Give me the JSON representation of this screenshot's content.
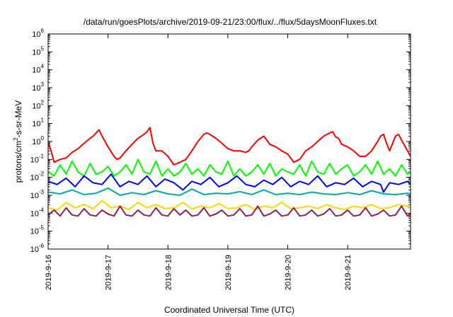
{
  "chart_data": {
    "type": "line",
    "title": "/data/run/goesPlots/archive/2019-09-21/23:00/flux/../flux/5daysMoonFluxes.txt",
    "xlabel": "Coordinated Universal Time (UTC)",
    "ylabel": "protons/cm2-s-sr-MeV",
    "ylabel_parts": {
      "pre": "protons/cm",
      "sup": "2",
      "post": "-s-sr-MeV"
    },
    "y_scale": "log",
    "ylim_exp": [
      -6,
      6
    ],
    "y_tick_base": "10",
    "y_ticks_exp": [
      -6,
      -5,
      -4,
      -3,
      -2,
      -1,
      0,
      1,
      2,
      3,
      4,
      5,
      6
    ],
    "x_ticks": [
      "2019-9-16",
      "2019-9-17",
      "2019-9-18",
      "2019-9-19",
      "2019-9-20",
      "2019-9-21"
    ],
    "x_range_days": [
      0,
      6.05
    ],
    "grid": false,
    "legend": "none",
    "series": [
      {
        "color": "#ff0000",
        "x": [
          0.0,
          0.05,
          0.1,
          0.2,
          0.3,
          0.4,
          0.5,
          0.6,
          0.7,
          0.75,
          0.8,
          0.85,
          0.9,
          1.0,
          1.1,
          1.15,
          1.2,
          1.3,
          1.4,
          1.5,
          1.6,
          1.65,
          1.7,
          1.75,
          1.8,
          1.85,
          1.9,
          2.0,
          2.1,
          2.2,
          2.3,
          2.4,
          2.5,
          2.6,
          2.65,
          2.7,
          2.8,
          2.9,
          3.0,
          3.1,
          3.2,
          3.3,
          3.35,
          3.4,
          3.5,
          3.6,
          3.7,
          3.8,
          3.9,
          4.0,
          4.1,
          4.2,
          4.3,
          4.4,
          4.5,
          4.6,
          4.7,
          4.75,
          4.8,
          4.85,
          4.9,
          5.0,
          5.1,
          5.2,
          5.3,
          5.4,
          5.5,
          5.55,
          5.6,
          5.65,
          5.7,
          5.8,
          5.85,
          5.9,
          6.0,
          6.05
        ],
        "y": [
          0.9,
          0.3,
          0.07,
          0.1,
          0.12,
          0.25,
          0.4,
          0.8,
          1.5,
          2.0,
          3.0,
          4.5,
          2.0,
          0.5,
          0.15,
          0.1,
          0.12,
          0.3,
          0.7,
          1.5,
          2.5,
          3.5,
          6.0,
          0.8,
          0.3,
          0.3,
          0.3,
          0.15,
          0.05,
          0.07,
          0.1,
          0.3,
          1.0,
          2.5,
          3.0,
          2.5,
          1.5,
          0.8,
          0.4,
          0.3,
          0.3,
          0.25,
          0.3,
          0.5,
          1.2,
          2.0,
          0.7,
          0.5,
          0.3,
          0.2,
          0.07,
          0.1,
          0.3,
          0.5,
          1.0,
          2.0,
          3.0,
          3.5,
          1.8,
          1.5,
          0.7,
          0.5,
          0.3,
          0.15,
          0.15,
          0.3,
          1.0,
          2.0,
          2.5,
          0.8,
          0.3,
          2.0,
          2.5,
          1.2,
          0.3,
          0.15
        ]
      },
      {
        "color": "#00ff00",
        "x": [
          0.0,
          0.1,
          0.2,
          0.3,
          0.4,
          0.5,
          0.6,
          0.7,
          0.8,
          0.9,
          1.0,
          1.1,
          1.2,
          1.3,
          1.4,
          1.5,
          1.6,
          1.7,
          1.8,
          1.9,
          2.0,
          2.1,
          2.2,
          2.3,
          2.4,
          2.5,
          2.6,
          2.7,
          2.8,
          2.9,
          3.0,
          3.1,
          3.2,
          3.3,
          3.4,
          3.5,
          3.6,
          3.7,
          3.8,
          3.9,
          4.0,
          4.1,
          4.2,
          4.3,
          4.4,
          4.5,
          4.6,
          4.7,
          4.8,
          4.9,
          5.0,
          5.1,
          5.2,
          5.3,
          5.4,
          5.5,
          5.6,
          5.7,
          5.8,
          5.9,
          6.0,
          6.05
        ],
        "y": [
          0.02,
          0.012,
          0.05,
          0.015,
          0.08,
          0.02,
          0.012,
          0.06,
          0.015,
          0.02,
          0.04,
          0.012,
          0.02,
          0.05,
          0.015,
          0.1,
          0.02,
          0.015,
          0.08,
          0.012,
          0.03,
          0.012,
          0.02,
          0.06,
          0.015,
          0.03,
          0.012,
          0.05,
          0.02,
          0.015,
          0.08,
          0.012,
          0.03,
          0.012,
          0.02,
          0.05,
          0.015,
          0.06,
          0.012,
          0.03,
          0.02,
          0.015,
          0.05,
          0.012,
          0.08,
          0.02,
          0.015,
          0.06,
          0.015,
          0.03,
          0.05,
          0.012,
          0.02,
          0.05,
          0.015,
          0.08,
          0.015,
          0.03,
          0.012,
          0.05,
          0.015,
          0.02
        ]
      },
      {
        "color": "#0000ff",
        "x": [
          0.0,
          0.15,
          0.3,
          0.45,
          0.6,
          0.75,
          0.9,
          1.05,
          1.2,
          1.35,
          1.5,
          1.65,
          1.8,
          1.95,
          2.1,
          2.25,
          2.4,
          2.55,
          2.7,
          2.85,
          3.0,
          3.15,
          3.3,
          3.45,
          3.6,
          3.75,
          3.9,
          4.05,
          4.2,
          4.35,
          4.5,
          4.65,
          4.8,
          4.95,
          5.1,
          5.25,
          5.4,
          5.55,
          5.6,
          5.7,
          5.85,
          6.0,
          6.05
        ],
        "y": [
          0.006,
          0.004,
          0.009,
          0.003,
          0.012,
          0.005,
          0.004,
          0.015,
          0.003,
          0.006,
          0.004,
          0.012,
          0.003,
          0.008,
          0.005,
          0.002,
          0.006,
          0.004,
          0.01,
          0.003,
          0.005,
          0.012,
          0.004,
          0.003,
          0.007,
          0.004,
          0.01,
          0.003,
          0.006,
          0.004,
          0.012,
          0.003,
          0.005,
          0.004,
          0.009,
          0.003,
          0.006,
          0.004,
          0.0015,
          0.005,
          0.004,
          0.006,
          0.004
        ]
      },
      {
        "color": "#00aaaa",
        "x": [
          0.0,
          0.2,
          0.4,
          0.6,
          0.8,
          1.0,
          1.2,
          1.4,
          1.6,
          1.8,
          2.0,
          2.2,
          2.4,
          2.6,
          2.8,
          3.0,
          3.2,
          3.4,
          3.6,
          3.8,
          4.0,
          4.2,
          4.4,
          4.6,
          4.8,
          5.0,
          5.2,
          5.4,
          5.6,
          5.8,
          6.0,
          6.05
        ],
        "y": [
          0.0015,
          0.0012,
          0.002,
          0.0011,
          0.0013,
          0.0025,
          0.001,
          0.0014,
          0.0011,
          0.0018,
          0.0012,
          0.001,
          0.0022,
          0.0011,
          0.0013,
          0.0012,
          0.0016,
          0.0011,
          0.002,
          0.0011,
          0.0013,
          0.0011,
          0.0015,
          0.0012,
          0.0011,
          0.0014,
          0.0011,
          0.0018,
          0.0012,
          0.0011,
          0.0013,
          0.0012
        ]
      },
      {
        "color": "#ffd700",
        "x": [
          0.0,
          0.15,
          0.3,
          0.45,
          0.6,
          0.75,
          0.9,
          1.05,
          1.2,
          1.35,
          1.5,
          1.65,
          1.8,
          1.95,
          2.1,
          2.25,
          2.4,
          2.55,
          2.7,
          2.85,
          3.0,
          3.15,
          3.3,
          3.45,
          3.6,
          3.75,
          3.9,
          4.05,
          4.2,
          4.35,
          4.5,
          4.65,
          4.8,
          4.95,
          5.1,
          5.25,
          5.4,
          5.55,
          5.7,
          5.85,
          6.0,
          6.05
        ],
        "y": [
          0.0002,
          0.00015,
          0.0004,
          0.0002,
          0.0003,
          0.00018,
          0.0005,
          0.0002,
          0.00025,
          0.00016,
          0.0004,
          0.0002,
          0.0003,
          0.00018,
          0.0002,
          0.0004,
          0.00017,
          0.00025,
          0.0002,
          0.00035,
          0.00018,
          0.0002,
          0.0003,
          0.00016,
          0.00025,
          0.0002,
          0.0004,
          0.00018,
          0.0002,
          0.00025,
          0.00018,
          0.0003,
          0.0002,
          0.00016,
          0.00025,
          0.0002,
          0.0003,
          0.00018,
          0.0002,
          0.0003,
          0.00025,
          0.0002
        ]
      },
      {
        "color": "#8b2252",
        "x": [
          0.0,
          0.1,
          0.2,
          0.3,
          0.4,
          0.5,
          0.6,
          0.7,
          0.8,
          0.9,
          1.0,
          1.1,
          1.2,
          1.3,
          1.4,
          1.5,
          1.6,
          1.7,
          1.8,
          1.9,
          2.0,
          2.1,
          2.2,
          2.3,
          2.4,
          2.5,
          2.6,
          2.7,
          2.8,
          2.9,
          3.0,
          3.1,
          3.2,
          3.3,
          3.4,
          3.5,
          3.6,
          3.7,
          3.8,
          3.9,
          4.0,
          4.1,
          4.2,
          4.3,
          4.4,
          4.5,
          4.6,
          4.7,
          4.8,
          4.9,
          5.0,
          5.1,
          5.2,
          5.3,
          5.4,
          5.5,
          5.6,
          5.7,
          5.8,
          5.9,
          6.0,
          6.05
        ],
        "y": [
          8e-05,
          0.00015,
          7e-05,
          0.0002,
          8e-05,
          7e-05,
          0.00018,
          8e-05,
          7e-05,
          0.00015,
          9e-05,
          7e-05,
          0.00025,
          8e-05,
          7e-05,
          0.00015,
          8e-05,
          7e-05,
          0.0002,
          8e-05,
          7e-05,
          0.00018,
          8e-05,
          0.00015,
          7e-05,
          8e-05,
          0.0002,
          7e-05,
          9e-05,
          0.00015,
          7e-05,
          8e-05,
          0.00018,
          7e-05,
          8e-05,
          0.00025,
          7e-05,
          9e-05,
          0.00015,
          7e-05,
          8e-05,
          0.0002,
          7e-05,
          8e-05,
          0.00015,
          7e-05,
          9e-05,
          0.00018,
          7e-05,
          8e-05,
          0.00015,
          7e-05,
          8e-05,
          0.0002,
          7e-05,
          9e-05,
          0.00015,
          7e-05,
          8e-05,
          0.00025,
          7e-05,
          9e-05
        ]
      }
    ]
  }
}
